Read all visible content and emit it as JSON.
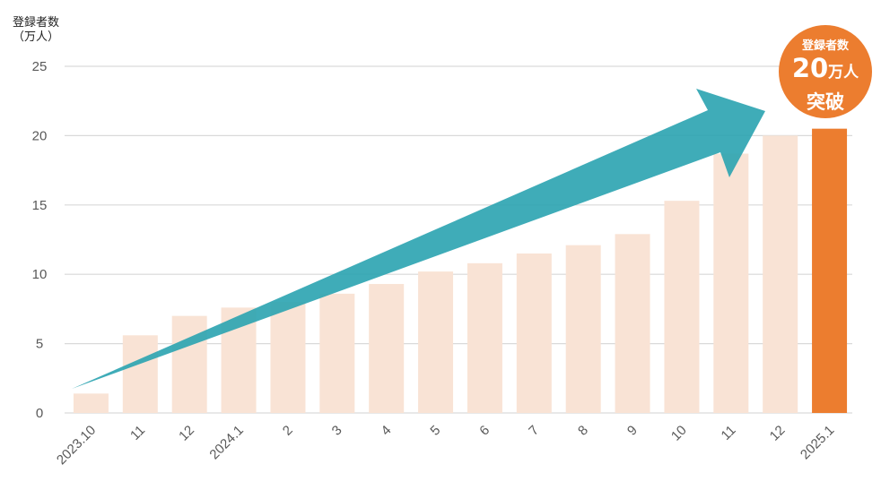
{
  "chart_data": {
    "type": "bar",
    "ylabel": "登録者数\n（万人）",
    "ylim": [
      0,
      25
    ],
    "yticks": [
      0,
      5,
      10,
      15,
      20,
      25
    ],
    "grid": true,
    "categories": [
      "2023.10",
      "11",
      "12",
      "2024.1",
      "2",
      "3",
      "4",
      "5",
      "6",
      "7",
      "8",
      "9",
      "10",
      "11",
      "12",
      "2025.1"
    ],
    "values": [
      1.4,
      5.6,
      7.0,
      7.6,
      8.0,
      8.6,
      9.3,
      10.2,
      10.8,
      11.5,
      12.1,
      12.9,
      15.3,
      18.7,
      20.0,
      20.5
    ],
    "highlight_index": 15,
    "colors": {
      "bar": "#f9e3d5",
      "highlight": "#ec7d2f",
      "arrow": "#2aa3b0",
      "grid": "#d9d9d9"
    },
    "annotations": {
      "trend_arrow": "increasing",
      "badge": {
        "line1": "登録者数",
        "number": "20",
        "unit": "万人",
        "line3": "突破"
      }
    }
  }
}
